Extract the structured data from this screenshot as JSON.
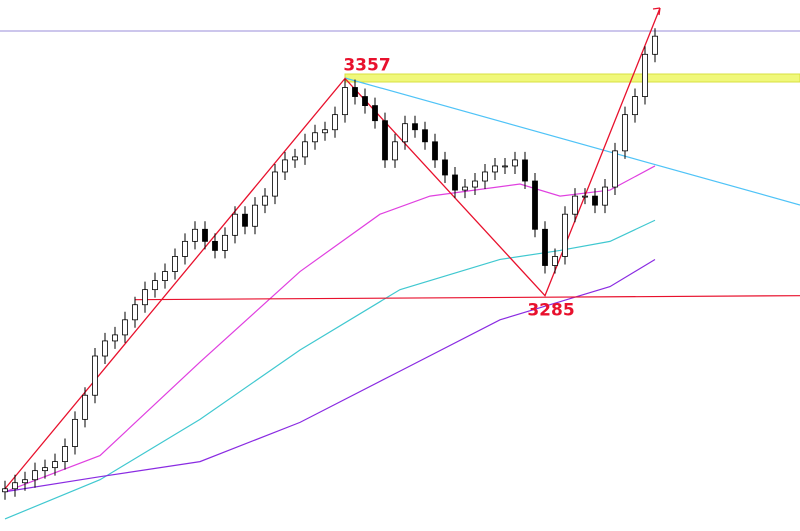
{
  "chart_data": {
    "type": "candlestick",
    "ylim": [
      3207,
      3383
    ],
    "close": [
      3221,
      3223,
      3224,
      3227,
      3228,
      3230,
      3235,
      3244,
      3252,
      3265,
      3270,
      3272,
      3277,
      3282,
      3287,
      3290,
      3293,
      3298,
      3303,
      3307,
      3303,
      3300,
      3305,
      3312,
      3308,
      3315,
      3318,
      3326,
      3330,
      3331,
      3336,
      3339,
      3340,
      3345,
      3354,
      3351,
      3348,
      3343,
      3330,
      3336,
      3342,
      3340,
      3336,
      3330,
      3325,
      3320,
      3321,
      3323,
      3326,
      3328,
      3328,
      3330,
      3323,
      3307,
      3295,
      3298,
      3312,
      3318,
      3318,
      3315,
      3321,
      3333,
      3345,
      3351,
      3365,
      3371
    ],
    "indicators": [
      {
        "color": "#e040e0",
        "x": [
          0,
          9.5,
          19.5,
          29.5,
          37.5,
          42.5,
          51.5,
          55.5,
          60.5,
          65
        ],
        "values": [
          3220,
          3232,
          3263,
          3293,
          3312,
          3318,
          3322,
          3318,
          3320,
          3328
        ]
      },
      {
        "color": "#40c8d0",
        "x": [
          0,
          9.5,
          19.5,
          29.5,
          39.5,
          49.5,
          55.5,
          60.5,
          65
        ],
        "values": [
          3211,
          3224,
          3244,
          3267,
          3287,
          3297,
          3300,
          3303,
          3310
        ]
      },
      {
        "color": "#8a2be2",
        "x": [
          0,
          9.5,
          19.5,
          29.5,
          39.5,
          49.5,
          55.5,
          60.5,
          65
        ],
        "values": [
          3220,
          3225,
          3230,
          3243,
          3260,
          3277,
          3283,
          3288,
          3297
        ]
      }
    ],
    "annotations": [
      3357,
      3285
    ],
    "color_up": "#ffffff",
    "color_down": "#000000",
    "color_annotation": "#e8112d"
  }
}
